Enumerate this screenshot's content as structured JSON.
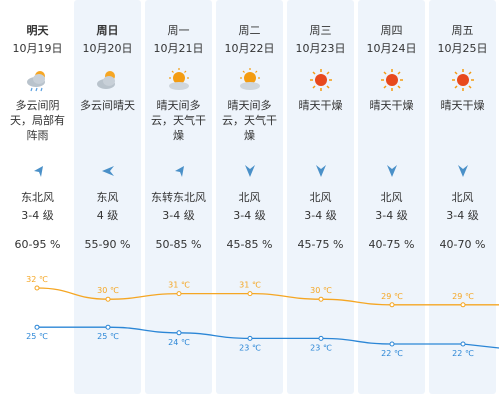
{
  "colors": {
    "column_bg": "#eef4fb",
    "high_line": "#f5a623",
    "low_line": "#2b86d6",
    "text": "#333333"
  },
  "days": [
    {
      "name": "明天",
      "date": "10月19日",
      "icon": "partly-cloudy-rain-icon",
      "weather": "多云间阴天，局部有阵雨",
      "wind_icon": "wind-arrow-southwest-icon",
      "wind_dir": "东北风",
      "wind_level": "3-4 级",
      "humidity": "60-95 %",
      "high": "32 ℃",
      "low": "25 ℃"
    },
    {
      "name": "周日",
      "date": "10月20日",
      "icon": "partly-cloudy-icon",
      "weather": "多云间晴天",
      "wind_icon": "wind-arrow-west-icon",
      "wind_dir": "东风",
      "wind_level": "4 级",
      "humidity": "55-90 %",
      "high": "30 ℃",
      "low": "25 ℃"
    },
    {
      "name": "周一",
      "date": "10月21日",
      "icon": "sunny-cloudy-icon",
      "weather": "晴天间多云，天气干燥",
      "wind_icon": "wind-arrow-southwest-icon",
      "wind_dir": "东转东北风",
      "wind_level": "3-4 级",
      "humidity": "50-85 %",
      "high": "31 ℃",
      "low": "24 ℃"
    },
    {
      "name": "周二",
      "date": "10月22日",
      "icon": "sunny-cloudy-icon",
      "weather": "晴天间多云，天气干燥",
      "wind_icon": "wind-arrow-south-icon",
      "wind_dir": "北风",
      "wind_level": "3-4 级",
      "humidity": "45-85 %",
      "high": "31 ℃",
      "low": "23 ℃"
    },
    {
      "name": "周三",
      "date": "10月23日",
      "icon": "sunny-icon",
      "weather": "晴天干燥",
      "wind_icon": "wind-arrow-south-icon",
      "wind_dir": "北风",
      "wind_level": "3-4 级",
      "humidity": "45-75 %",
      "high": "30 ℃",
      "low": "23 ℃"
    },
    {
      "name": "周四",
      "date": "10月24日",
      "icon": "sunny-icon",
      "weather": "晴天干燥",
      "wind_icon": "wind-arrow-south-icon",
      "wind_dir": "北风",
      "wind_level": "3-4 级",
      "humidity": "40-75 %",
      "high": "29 ℃",
      "low": "22 ℃"
    },
    {
      "name": "周五",
      "date": "10月25日",
      "icon": "sunny-icon",
      "weather": "晴天干燥",
      "wind_icon": "wind-arrow-south-icon",
      "wind_dir": "北风",
      "wind_level": "3-4 级",
      "humidity": "40-70 %",
      "high": "29 ℃",
      "low": "22 ℃"
    }
  ],
  "chart_data": {
    "type": "line",
    "categories": [
      "10月19日",
      "10月20日",
      "10月21日",
      "10月22日",
      "10月23日",
      "10月24日",
      "10月25日"
    ],
    "series": [
      {
        "values": [
          32,
          30,
          31,
          31,
          30,
          29,
          29
        ]
      },
      {
        "values": [
          25,
          25,
          24,
          23,
          23,
          22,
          22
        ]
      }
    ]
  }
}
